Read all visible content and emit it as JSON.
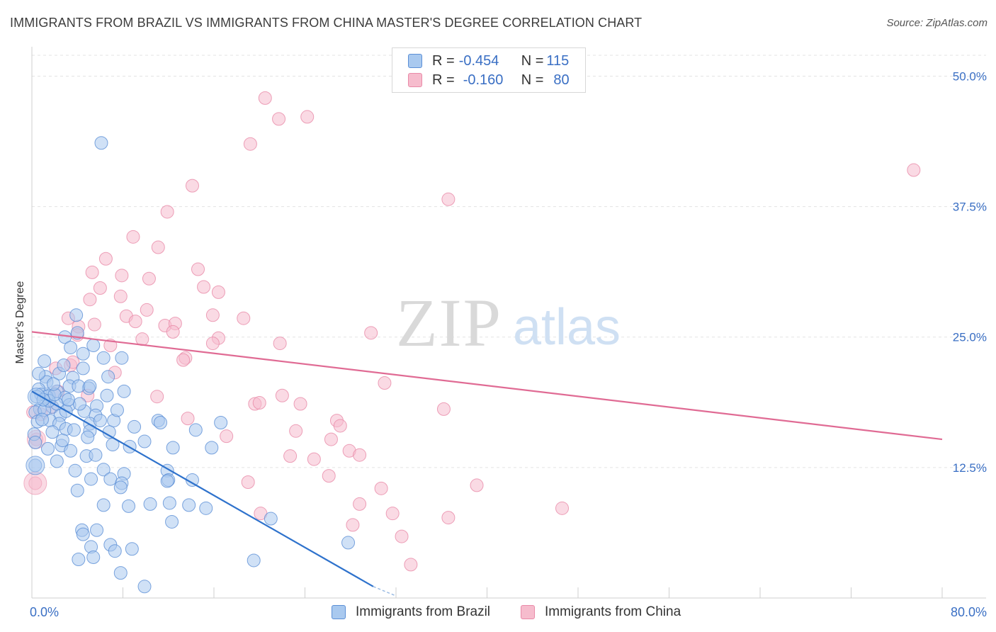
{
  "title": "IMMIGRANTS FROM BRAZIL VS IMMIGRANTS FROM CHINA MASTER'S DEGREE CORRELATION CHART",
  "source": "Source: ZipAtlas.com",
  "watermark": {
    "zip": "ZIP",
    "atlas": "atlas"
  },
  "legend": {
    "rows": [
      {
        "r_label": "R = ",
        "r_value": "-0.454",
        "n_label": "N = ",
        "n_value": "115"
      },
      {
        "r_label": "R = ",
        "r_value": "-0.160",
        "n_label": "N = ",
        "n_value": "80"
      }
    ]
  },
  "colors": {
    "brazil_fill": "#a9c9ef",
    "brazil_stroke": "#5b8fd6",
    "brazil_line": "#2e72cc",
    "china_fill": "#f6bccd",
    "china_stroke": "#e98aa8",
    "china_line": "#e06b94",
    "axis_text": "#3a6fc4",
    "grid": "#e3e3e3"
  },
  "chart_data": {
    "type": "scatter",
    "title": "IMMIGRANTS FROM BRAZIL VS IMMIGRANTS FROM CHINA MASTER'S DEGREE CORRELATION CHART",
    "xlabel": "",
    "ylabel": "Master's Degree",
    "xlim": [
      0,
      80
    ],
    "ylim": [
      0,
      52
    ],
    "x_tick_labels": [
      "0.0%",
      "80.0%"
    ],
    "y_ticks": [
      12.5,
      25.0,
      37.5,
      50.0
    ],
    "y_tick_labels": [
      "12.5%",
      "25.0%",
      "37.5%",
      "50.0%"
    ],
    "legend_position": "top-center",
    "series": [
      {
        "name": "Immigrants from Brazil",
        "R": -0.454,
        "N": 115,
        "trend": {
          "x": [
            0,
            30
          ],
          "y": [
            19.8,
            1.1
          ]
        },
        "trend_dashed": {
          "x": [
            30,
            32
          ],
          "y": [
            1.1,
            0.2
          ]
        },
        "points": [
          [
            6.1,
            43.6
          ],
          [
            3.9,
            27.1
          ],
          [
            1.1,
            22.7
          ],
          [
            2.9,
            25.0
          ],
          [
            4.0,
            25.4
          ],
          [
            3.4,
            24.0
          ],
          [
            4.5,
            23.4
          ],
          [
            6.3,
            23.0
          ],
          [
            1.2,
            21.2
          ],
          [
            2.4,
            21.5
          ],
          [
            1.3,
            20.7
          ],
          [
            3.6,
            21.1
          ],
          [
            4.5,
            22.0
          ],
          [
            5.0,
            20.1
          ],
          [
            6.7,
            21.2
          ],
          [
            0.6,
            20.0
          ],
          [
            0.8,
            19.5
          ],
          [
            1.5,
            19.4
          ],
          [
            2.2,
            19.8
          ],
          [
            3.3,
            20.3
          ],
          [
            4.1,
            20.3
          ],
          [
            5.1,
            20.3
          ],
          [
            6.6,
            19.4
          ],
          [
            8.1,
            19.8
          ],
          [
            0.4,
            19.3
          ],
          [
            1.3,
            19.3
          ],
          [
            2.9,
            19.2
          ],
          [
            0.7,
            18.1
          ],
          [
            1.8,
            18.3
          ],
          [
            2.2,
            18.6
          ],
          [
            3.3,
            18.5
          ],
          [
            5.7,
            18.4
          ],
          [
            0.3,
            17.8
          ],
          [
            1.1,
            18.0
          ],
          [
            2.5,
            17.5
          ],
          [
            4.6,
            17.9
          ],
          [
            5.6,
            17.5
          ],
          [
            0.5,
            16.9
          ],
          [
            1.6,
            17.0
          ],
          [
            2.4,
            16.7
          ],
          [
            5.1,
            16.7
          ],
          [
            7.2,
            17.0
          ],
          [
            11.1,
            17.0
          ],
          [
            11.3,
            16.8
          ],
          [
            16.6,
            16.8
          ],
          [
            1.8,
            15.9
          ],
          [
            3.0,
            16.2
          ],
          [
            5.1,
            16.0
          ],
          [
            14.4,
            16.1
          ],
          [
            0.2,
            15.7
          ],
          [
            9.9,
            15.0
          ],
          [
            7.1,
            14.7
          ],
          [
            8.6,
            14.5
          ],
          [
            12.4,
            14.4
          ],
          [
            15.8,
            14.4
          ],
          [
            0.3,
            14.9
          ],
          [
            2.6,
            14.6
          ],
          [
            3.4,
            14.1
          ],
          [
            4.8,
            13.6
          ],
          [
            5.6,
            13.7
          ],
          [
            2.2,
            13.1
          ],
          [
            0.3,
            12.7
          ],
          [
            3.8,
            12.2
          ],
          [
            6.3,
            12.3
          ],
          [
            8.1,
            11.9
          ],
          [
            11.9,
            12.2
          ],
          [
            5.2,
            11.4
          ],
          [
            6.9,
            11.4
          ],
          [
            7.9,
            11.0
          ],
          [
            12.0,
            11.3
          ],
          [
            14.1,
            11.3
          ],
          [
            4.0,
            10.3
          ],
          [
            7.8,
            10.6
          ],
          [
            11.9,
            11.2
          ],
          [
            6.3,
            8.9
          ],
          [
            8.5,
            8.8
          ],
          [
            10.4,
            9.0
          ],
          [
            12.1,
            9.1
          ],
          [
            13.8,
            8.9
          ],
          [
            15.3,
            8.6
          ],
          [
            12.3,
            7.3
          ],
          [
            21.0,
            7.6
          ],
          [
            4.4,
            6.5
          ],
          [
            5.7,
            6.5
          ],
          [
            4.5,
            6.1
          ],
          [
            6.9,
            5.1
          ],
          [
            8.8,
            4.7
          ],
          [
            5.2,
            4.9
          ],
          [
            7.3,
            4.5
          ],
          [
            4.1,
            3.7
          ],
          [
            5.4,
            3.9
          ],
          [
            19.5,
            3.6
          ],
          [
            27.8,
            5.3
          ],
          [
            7.8,
            2.4
          ],
          [
            9.9,
            1.1
          ],
          [
            2.7,
            15.1
          ],
          [
            1.5,
            18.9
          ],
          [
            0.9,
            17.1
          ],
          [
            3.0,
            17.9
          ],
          [
            4.2,
            18.6
          ],
          [
            6.0,
            17.0
          ],
          [
            2.0,
            19.5
          ],
          [
            1.0,
            19.0
          ],
          [
            7.5,
            18.0
          ],
          [
            9.0,
            16.4
          ],
          [
            3.7,
            16.1
          ],
          [
            1.4,
            14.3
          ],
          [
            4.9,
            15.4
          ],
          [
            6.8,
            15.9
          ],
          [
            2.8,
            22.3
          ],
          [
            5.4,
            24.2
          ],
          [
            0.6,
            21.5
          ],
          [
            1.9,
            20.5
          ],
          [
            3.2,
            19.0
          ],
          [
            7.9,
            23.0
          ]
        ]
      },
      {
        "name": "Immigrants from China",
        "R": -0.16,
        "N": 80,
        "trend": {
          "x": [
            0,
            80
          ],
          "y": [
            25.5,
            15.2
          ]
        },
        "points": [
          [
            20.5,
            47.9
          ],
          [
            21.7,
            45.9
          ],
          [
            24.2,
            46.1
          ],
          [
            19.2,
            43.5
          ],
          [
            77.5,
            41.0
          ],
          [
            14.1,
            39.5
          ],
          [
            36.6,
            38.2
          ],
          [
            11.9,
            37.0
          ],
          [
            8.9,
            34.6
          ],
          [
            11.1,
            33.6
          ],
          [
            6.5,
            32.5
          ],
          [
            14.6,
            31.5
          ],
          [
            5.3,
            31.2
          ],
          [
            7.9,
            30.9
          ],
          [
            10.3,
            30.6
          ],
          [
            15.1,
            29.8
          ],
          [
            6.0,
            29.7
          ],
          [
            16.4,
            29.3
          ],
          [
            7.8,
            28.9
          ],
          [
            5.1,
            28.6
          ],
          [
            10.1,
            27.6
          ],
          [
            15.9,
            27.1
          ],
          [
            18.6,
            26.8
          ],
          [
            8.3,
            27.0
          ],
          [
            9.1,
            26.5
          ],
          [
            3.2,
            26.8
          ],
          [
            11.7,
            26.1
          ],
          [
            12.6,
            26.3
          ],
          [
            5.5,
            26.2
          ],
          [
            4.1,
            26.0
          ],
          [
            12.4,
            25.5
          ],
          [
            29.8,
            25.4
          ],
          [
            9.7,
            24.8
          ],
          [
            16.4,
            24.9
          ],
          [
            4.0,
            25.2
          ],
          [
            6.9,
            24.2
          ],
          [
            15.9,
            24.4
          ],
          [
            21.8,
            24.4
          ],
          [
            13.5,
            23.0
          ],
          [
            13.3,
            22.8
          ],
          [
            3.4,
            22.3
          ],
          [
            2.1,
            22.0
          ],
          [
            7.3,
            21.6
          ],
          [
            31.0,
            20.6
          ],
          [
            2.3,
            19.8
          ],
          [
            4.9,
            19.4
          ],
          [
            11.0,
            19.3
          ],
          [
            22.0,
            19.4
          ],
          [
            19.6,
            18.6
          ],
          [
            20.0,
            18.7
          ],
          [
            23.6,
            18.6
          ],
          [
            36.2,
            18.1
          ],
          [
            0.8,
            17.6
          ],
          [
            13.7,
            17.2
          ],
          [
            26.8,
            17.0
          ],
          [
            27.1,
            16.5
          ],
          [
            23.2,
            16.0
          ],
          [
            17.1,
            15.5
          ],
          [
            26.3,
            15.2
          ],
          [
            27.9,
            14.1
          ],
          [
            28.8,
            13.7
          ],
          [
            0.4,
            15.2
          ],
          [
            22.7,
            13.6
          ],
          [
            24.8,
            13.3
          ],
          [
            26.1,
            11.7
          ],
          [
            19.0,
            11.1
          ],
          [
            30.7,
            10.5
          ],
          [
            39.1,
            10.8
          ],
          [
            46.6,
            8.6
          ],
          [
            28.8,
            9.0
          ],
          [
            20.1,
            8.1
          ],
          [
            31.7,
            8.1
          ],
          [
            36.6,
            7.7
          ],
          [
            28.2,
            7.0
          ],
          [
            32.5,
            5.9
          ],
          [
            33.3,
            3.2
          ],
          [
            0.3,
            11.0
          ],
          [
            1.8,
            18.3
          ],
          [
            3.6,
            22.6
          ],
          [
            0.1,
            17.8
          ]
        ]
      }
    ]
  },
  "bottom_legend": [
    {
      "label": "Immigrants from Brazil"
    },
    {
      "label": "Immigrants from China"
    }
  ]
}
